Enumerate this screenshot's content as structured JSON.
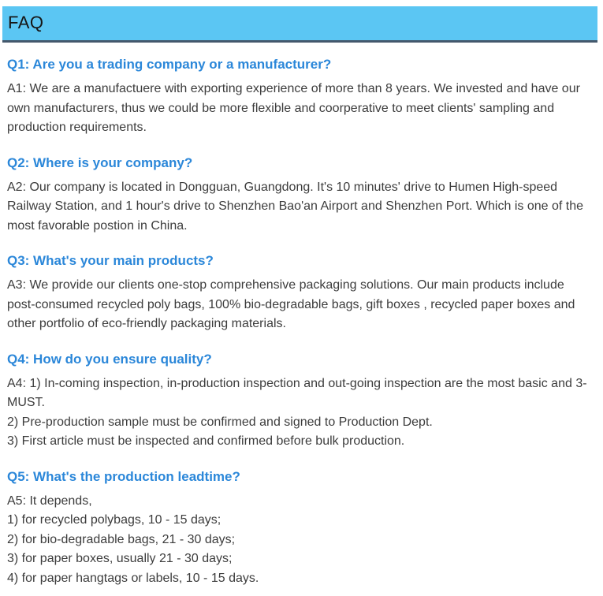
{
  "header": {
    "title": "FAQ"
  },
  "colors": {
    "page_bg": "#ffffff",
    "header_bg": "#5bc6f3",
    "header_border": "#44586c",
    "header_text": "#161616",
    "question": "#2b87d9",
    "answer": "#3c3c3c"
  },
  "faq": {
    "items": [
      {
        "question": "Q1: Are you a trading company or a manufacturer?",
        "answer_lines": [
          "A1: We are a manufactuere with exporting experience of more than 8 years. We invested and have our own manufacturers, thus we could be more flexible and coorperative to meet clients' sampling and production requirements."
        ]
      },
      {
        "question": "Q2: Where is your company?",
        "answer_lines": [
          "A2: Our company is located in Dongguan, Guangdong. It's 10 minutes' drive to Humen High-speed Railway Station, and 1 hour's drive to Shenzhen Bao'an Airport and Shenzhen Port. Which is one of the most favorable postion in China."
        ]
      },
      {
        "question": "Q3: What's your main products?",
        "answer_lines": [
          "A3: We provide our clients one-stop comprehensive packaging solutions. Our main products include post-consumed recycled poly bags, 100% bio-degradable bags, gift boxes , recycled paper boxes and other portfolio of eco-friendly packaging materials."
        ]
      },
      {
        "question": "Q4: How do you ensure quality?",
        "answer_lines": [
          "A4: 1) In-coming inspection, in-production inspection and out-going inspection are the most basic and 3-MUST.",
          "2) Pre-production sample must be confirmed and signed to Production Dept.",
          "3) First article must be inspected and confirmed before bulk production."
        ]
      },
      {
        "question": "Q5: What's the production leadtime?",
        "answer_lines": [
          "A5: It depends,",
          "1) for recycled polybags, 10 - 15 days;",
          "2) for bio-degradable bags, 21 - 30 days;",
          "3) for paper boxes, usually 21 - 30 days;",
          "4) for paper hangtags or labels, 10 - 15 days."
        ]
      }
    ]
  }
}
